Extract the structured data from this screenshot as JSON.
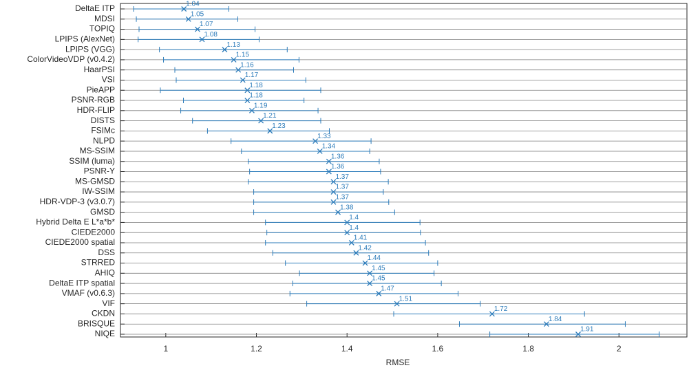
{
  "chart_data": {
    "type": "errorbar",
    "xlabel": "RMSE",
    "categories": [
      "DeltaE ITP",
      "MDSI",
      "TOPIQ",
      "LPIPS (AlexNet)",
      "LPIPS (VGG)",
      "ColorVideoVDP (v0.4.2)",
      "HaarPSI",
      "VSI",
      "PieAPP",
      "PSNR-RGB",
      "HDR-FLIP",
      "DISTS",
      "FSIMc",
      "NLPD",
      "MS-SSIM",
      "SSIM (luma)",
      "PSNR-Y",
      "MS-GMSD",
      "IW-SSIM",
      "HDR-VDP-3 (v3.0.7)",
      "GMSD",
      "Hybrid Delta E L*a*b*",
      "CIEDE2000",
      "CIEDE2000 spatial",
      "DSS",
      "STRRED",
      "AHIQ",
      "DeltaE ITP spatial",
      "VMAF (v0.6.3)",
      "VIF",
      "CKDN",
      "BRISQUE",
      "NIQE"
    ],
    "values": [
      1.04,
      1.05,
      1.07,
      1.08,
      1.13,
      1.15,
      1.16,
      1.17,
      1.18,
      1.18,
      1.19,
      1.21,
      1.23,
      1.33,
      1.34,
      1.36,
      1.36,
      1.37,
      1.37,
      1.37,
      1.38,
      1.4,
      1.4,
      1.41,
      1.42,
      1.44,
      1.45,
      1.45,
      1.47,
      1.51,
      1.72,
      1.84,
      1.91
    ],
    "ci_low": [
      0.929,
      0.935,
      0.941,
      0.939,
      0.986,
      0.995,
      1.02,
      1.023,
      0.988,
      1.039,
      1.033,
      1.059,
      1.092,
      1.144,
      1.167,
      1.182,
      1.185,
      1.182,
      1.194,
      1.194,
      1.194,
      1.22,
      1.223,
      1.22,
      1.236,
      1.264,
      1.295,
      1.28,
      1.274,
      1.311,
      1.503,
      1.648,
      1.715
    ],
    "ci_high": [
      1.139,
      1.159,
      1.197,
      1.206,
      1.268,
      1.294,
      1.282,
      1.309,
      1.342,
      1.305,
      1.336,
      1.342,
      1.361,
      1.453,
      1.45,
      1.471,
      1.474,
      1.491,
      1.48,
      1.492,
      1.505,
      1.561,
      1.562,
      1.573,
      1.58,
      1.6,
      1.592,
      1.608,
      1.645,
      1.694,
      1.924,
      2.014,
      2.089
    ],
    "color": "#2b7bba",
    "xlim": [
      0.9,
      2.15
    ],
    "xticks": [
      1,
      1.2,
      1.4,
      1.6,
      1.8,
      2
    ],
    "grid": true
  }
}
